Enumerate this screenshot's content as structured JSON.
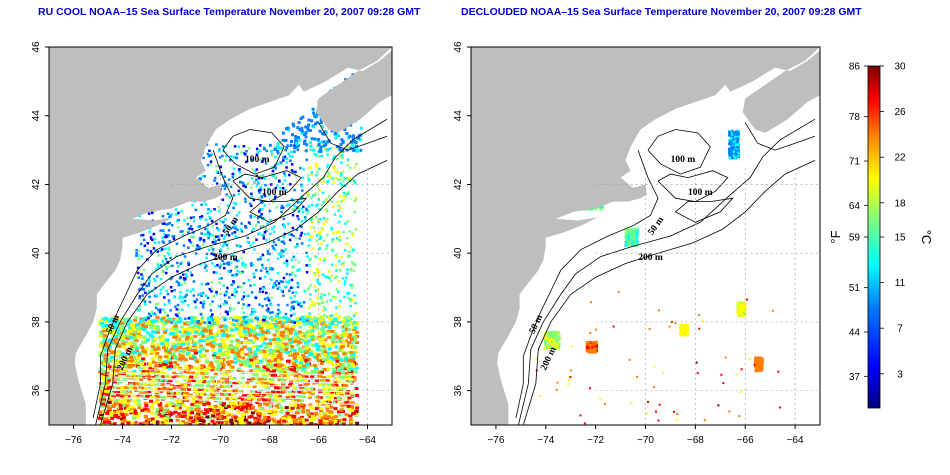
{
  "panels": [
    {
      "id": "left",
      "title": "RU COOL NOAA–15 Sea Surface Temperature November 20, 2007 09:28 GMT",
      "isobaths": [
        "100 m",
        "100 m",
        "50 m",
        "200 m",
        "50 m",
        "200 m"
      ]
    },
    {
      "id": "right",
      "title": "DECLOUDED NOAA–15 Sea Surface Temperature November 20, 2007 09:28 GMT",
      "isobaths": [
        "100 m",
        "100 m",
        "50 m",
        "200 m",
        "50 m",
        "200 m"
      ]
    }
  ],
  "axes": {
    "lon_ticks": [
      -76,
      -74,
      -72,
      -70,
      -68,
      -66,
      -64
    ],
    "lat_ticks": [
      36,
      38,
      40,
      42,
      44,
      46
    ],
    "lon_range": [
      -77.0,
      -63.0
    ],
    "lat_range": [
      35.0,
      46.0
    ]
  },
  "colorbar": {
    "fahrenheit_unit": "°F",
    "celsius_unit": "°C",
    "fahrenheit_ticks": [
      86,
      78,
      71,
      64,
      59,
      51,
      44,
      37
    ],
    "celsius_ticks": [
      30,
      26,
      22,
      18,
      15,
      11,
      7,
      3
    ],
    "celsius_range": [
      0,
      30
    ],
    "colors": [
      "#00007f",
      "#0000ff",
      "#007fff",
      "#00ffff",
      "#7fff7f",
      "#ffff00",
      "#ff7f00",
      "#ff0000",
      "#7f0000"
    ]
  },
  "land_color": "#bebebe",
  "grid": "dotted"
}
